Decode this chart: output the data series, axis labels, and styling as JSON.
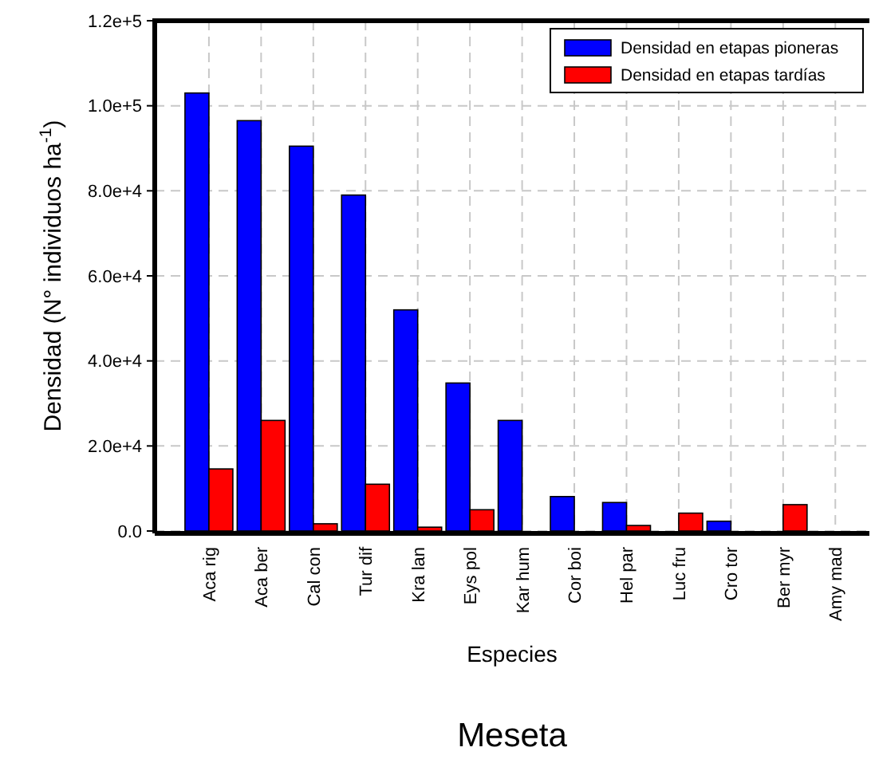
{
  "chart_data": {
    "type": "bar",
    "title": "Meseta",
    "xlabel": "Especies",
    "ylabel": "Densidad (N° individuos ha$^{-1}$)",
    "categories": [
      "Aca rig",
      "Aca ber",
      "Cal con",
      "Tur dif",
      "Kra lan",
      "Eys pol",
      "Kar hum",
      "Cor boi",
      "Hel par",
      "Luc fru",
      "Cro tor",
      "Ber myr",
      "Amy mad"
    ],
    "series": [
      {
        "name": "Densidad en etapas pioneras",
        "color": "#0000ff",
        "values": [
          103000,
          96500,
          90500,
          79000,
          52000,
          34800,
          26000,
          8100,
          6700,
          0,
          2300,
          0,
          0
        ]
      },
      {
        "name": "Densidad en etapas tardías",
        "color": "#ff0000",
        "values": [
          14600,
          26000,
          1700,
          11000,
          900,
          5000,
          0,
          0,
          1300,
          4200,
          0,
          6200,
          0
        ]
      }
    ],
    "ylim": [
      0,
      120000
    ],
    "yticks": [
      {
        "value": 0,
        "label": "0.0"
      },
      {
        "value": 20000,
        "label": "2.0e+4"
      },
      {
        "value": 40000,
        "label": "4.0e+4"
      },
      {
        "value": 60000,
        "label": "6.0e+4"
      },
      {
        "value": 80000,
        "label": "8.0e+4"
      },
      {
        "value": 100000,
        "label": "1.0e+5"
      },
      {
        "value": 120000,
        "label": "1.2e+5"
      }
    ],
    "grid": true,
    "legend": "top right"
  }
}
